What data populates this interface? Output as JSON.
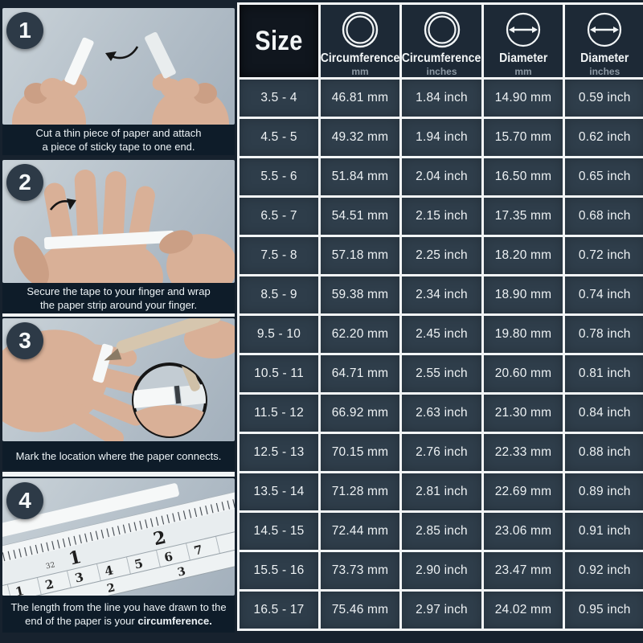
{
  "page_title": "Ring size measuring guide",
  "colors": {
    "background": "#17222e",
    "caption_band": "#0e1c29",
    "table_cell": "#2f3e4b",
    "table_header": "#1d2936",
    "size_header": "#10161e",
    "grid_line": "#f2f5f6",
    "text": "#eef2f4",
    "unit_text": "#8d99a4",
    "badge": "#2d3a47"
  },
  "steps": [
    {
      "number": "1",
      "illustration": "two hands folding a paper strip with tape",
      "lines": [
        "Cut a thin piece of paper and attach",
        "a piece of sticky tape to one end."
      ]
    },
    {
      "number": "2",
      "illustration": "paper strip wrapped around finger of open hand",
      "lines": [
        "Secure the tape to your finger and wrap",
        "the paper strip around your finger."
      ]
    },
    {
      "number": "3",
      "illustration": "pen marking paper strip on finger with magnified inset",
      "lines": [
        "Mark the location where the paper connects."
      ]
    },
    {
      "number": "4",
      "illustration": "ruler measuring the paper strip",
      "line1": "The length from the line you have drawn to the",
      "line2_prefix": "end of the paper is your ",
      "line2_bold": "circumference.",
      "ruler_inch_numbers": [
        "1",
        "2",
        "3"
      ],
      "ruler_cm_numbers": [
        "1",
        "2",
        "3",
        "4",
        "5",
        "6",
        "7"
      ],
      "ruler_bottom_numbers": [
        "1",
        "2",
        "3"
      ],
      "ruler_small_label": "32"
    }
  ],
  "table": {
    "header": {
      "size_label": "Size",
      "columns": [
        {
          "title": "Circumference",
          "unit": "mm",
          "icon": "ring-circumference-icon"
        },
        {
          "title": "Circumference",
          "unit": "inches",
          "icon": "ring-circumference-icon"
        },
        {
          "title": "Diameter",
          "unit": "mm",
          "icon": "diameter-arrow-icon"
        },
        {
          "title": "Diameter",
          "unit": "inches",
          "icon": "diameter-arrow-icon"
        }
      ]
    },
    "rows": [
      {
        "size": "3.5 - 4",
        "circ_mm": "46.81 mm",
        "circ_in": "1.84 inch",
        "dia_mm": "14.90 mm",
        "dia_in": "0.59 inch"
      },
      {
        "size": "4.5 - 5",
        "circ_mm": "49.32 mm",
        "circ_in": "1.94 inch",
        "dia_mm": "15.70 mm",
        "dia_in": "0.62 inch"
      },
      {
        "size": "5.5 - 6",
        "circ_mm": "51.84 mm",
        "circ_in": "2.04 inch",
        "dia_mm": "16.50 mm",
        "dia_in": "0.65 inch"
      },
      {
        "size": "6.5 - 7",
        "circ_mm": "54.51 mm",
        "circ_in": "2.15 inch",
        "dia_mm": "17.35 mm",
        "dia_in": "0.68 inch"
      },
      {
        "size": "7.5 - 8",
        "circ_mm": "57.18 mm",
        "circ_in": "2.25 inch",
        "dia_mm": "18.20 mm",
        "dia_in": "0.72 inch"
      },
      {
        "size": "8.5 - 9",
        "circ_mm": "59.38 mm",
        "circ_in": "2.34 inch",
        "dia_mm": "18.90 mm",
        "dia_in": "0.74 inch"
      },
      {
        "size": "9.5 - 10",
        "circ_mm": "62.20 mm",
        "circ_in": "2.45 inch",
        "dia_mm": "19.80 mm",
        "dia_in": "0.78 inch"
      },
      {
        "size": "10.5 - 11",
        "circ_mm": "64.71 mm",
        "circ_in": "2.55 inch",
        "dia_mm": "20.60 mm",
        "dia_in": "0.81 inch"
      },
      {
        "size": "11.5 - 12",
        "circ_mm": "66.92 mm",
        "circ_in": "2.63 inch",
        "dia_mm": "21.30 mm",
        "dia_in": "0.84 inch"
      },
      {
        "size": "12.5 - 13",
        "circ_mm": "70.15 mm",
        "circ_in": "2.76 inch",
        "dia_mm": "22.33 mm",
        "dia_in": "0.88 inch"
      },
      {
        "size": "13.5 - 14",
        "circ_mm": "71.28 mm",
        "circ_in": "2.81 inch",
        "dia_mm": "22.69 mm",
        "dia_in": "0.89 inch"
      },
      {
        "size": "14.5 - 15",
        "circ_mm": "72.44 mm",
        "circ_in": "2.85 inch",
        "dia_mm": "23.06 mm",
        "dia_in": "0.91 inch"
      },
      {
        "size": "15.5 - 16",
        "circ_mm": "73.73 mm",
        "circ_in": "2.90 inch",
        "dia_mm": "23.47 mm",
        "dia_in": "0.92 inch"
      },
      {
        "size": "16.5 - 17",
        "circ_mm": "75.46 mm",
        "circ_in": "2.97 inch",
        "dia_mm": "24.02 mm",
        "dia_in": "0.95 inch"
      }
    ]
  }
}
